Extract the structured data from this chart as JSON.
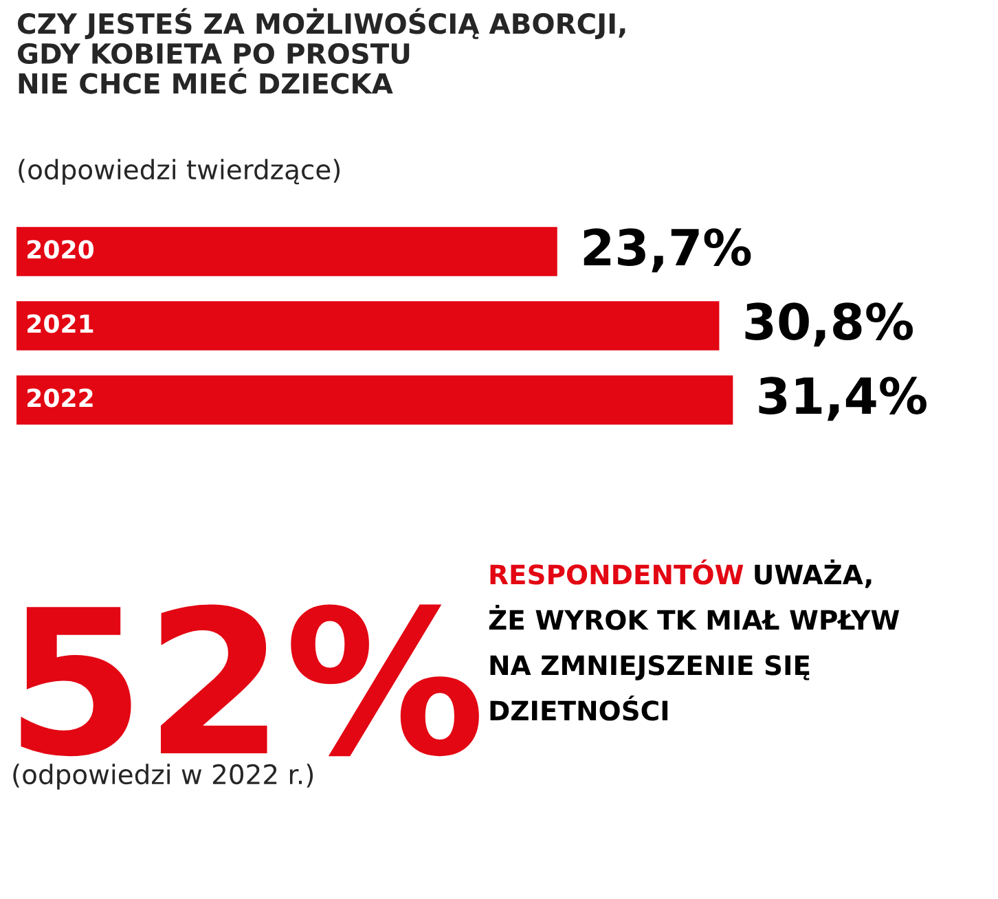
{
  "chart_data": {
    "type": "bar",
    "orientation": "horizontal",
    "title": "CZY JESTEŚ ZA MOŻLIWOŚCIĄ ABORCJI,\nGDY KOBIETA PO PROSTU\nNIE CHCE MIEĆ DZIECKA",
    "subtitle": "(odpowiedzi twierdzące)",
    "categories": [
      "2020",
      "2021",
      "2022"
    ],
    "values": [
      23.7,
      30.8,
      31.4
    ],
    "color": "#e30613",
    "value_labels": [
      "23,7%",
      "30,8%",
      "31,4%"
    ],
    "tick_labels": false,
    "annotations": [
      "52%",
      "RESPONDENTÓW UWAŻA,\nŻE WYROK TK MIAŁ WPŁYW\nNA ZMNIEJSZENIE SIĘ\nDZIETNOŚCI",
      "(odpowiedzi w 2022 r.)"
    ]
  }
}
